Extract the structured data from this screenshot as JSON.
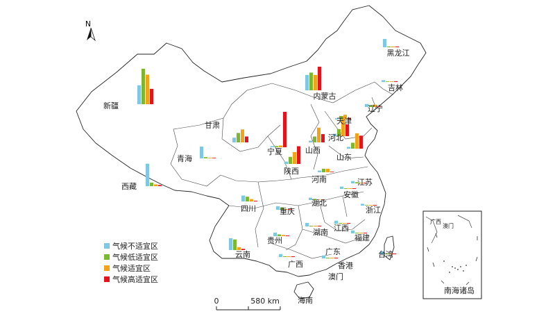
{
  "north_label": "N",
  "legend": {
    "items": [
      {
        "label": "气候不适宜区",
        "color": "#7ec8e3"
      },
      {
        "label": "气候低适宜区",
        "color": "#7cb82f"
      },
      {
        "label": "气候适宜区",
        "color": "#f5a21b"
      },
      {
        "label": "气候高适宜区",
        "color": "#e3141c"
      }
    ]
  },
  "scale_bar": {
    "start": "0",
    "end": "580 km"
  },
  "inset_label": "南海诸岛",
  "chart_data": {
    "type": "bar",
    "series_names": [
      "气候不适宜区",
      "气候低适宜区",
      "气候适宜区",
      "气候高适宜区"
    ],
    "provinces": [
      {
        "name": "新疆",
        "values": [
          32,
          60,
          50,
          26
        ]
      },
      {
        "name": "西藏",
        "values": [
          38,
          6,
          3,
          2
        ]
      },
      {
        "name": "青海",
        "values": [
          20,
          2,
          1,
          1
        ]
      },
      {
        "name": "甘肃",
        "values": [
          8,
          16,
          22,
          10
        ]
      },
      {
        "name": "内蒙古",
        "values": [
          26,
          30,
          26,
          40
        ]
      },
      {
        "name": "黑龙江",
        "values": [
          14,
          0,
          0,
          0
        ]
      },
      {
        "name": "吉林",
        "values": [
          3,
          1,
          1,
          0
        ]
      },
      {
        "name": "辽宁",
        "values": [
          5,
          3,
          4,
          1
        ]
      },
      {
        "name": "宁夏",
        "values": [
          2,
          2,
          3,
          60
        ]
      },
      {
        "name": "陕西",
        "values": [
          4,
          12,
          20,
          30
        ]
      },
      {
        "name": "山西",
        "values": [
          3,
          10,
          25,
          14
        ]
      },
      {
        "name": "河北",
        "values": [
          4,
          12,
          34,
          20
        ]
      },
      {
        "name": "天津",
        "values": [
          2,
          6,
          8,
          3
        ]
      },
      {
        "name": "山东",
        "values": [
          3,
          10,
          26,
          22
        ]
      },
      {
        "name": "河南",
        "values": [
          3,
          6,
          6,
          1
        ]
      },
      {
        "name": "四川",
        "values": [
          10,
          8,
          4,
          0
        ]
      },
      {
        "name": "重庆",
        "values": [
          6,
          4,
          1,
          0
        ]
      },
      {
        "name": "湖北",
        "values": [
          4,
          2,
          1,
          0
        ]
      },
      {
        "name": "江苏",
        "values": [
          4,
          2,
          1,
          0
        ]
      },
      {
        "name": "安徽",
        "values": [
          4,
          0,
          0,
          0
        ]
      },
      {
        "name": "浙江",
        "values": [
          3,
          1,
          0,
          0
        ]
      },
      {
        "name": "贵州",
        "values": [
          6,
          3,
          2,
          0
        ]
      },
      {
        "name": "湖南",
        "values": [
          6,
          0,
          0,
          0
        ]
      },
      {
        "name": "江西",
        "values": [
          5,
          0,
          0,
          0
        ]
      },
      {
        "name": "福建",
        "values": [
          5,
          0,
          0,
          0
        ]
      },
      {
        "name": "云南",
        "values": [
          20,
          18,
          5,
          2
        ]
      },
      {
        "name": "广西",
        "values": [
          5,
          0,
          0,
          0
        ]
      },
      {
        "name": "广东",
        "values": [
          5,
          0,
          0,
          0
        ]
      },
      {
        "name": "台湾",
        "values": [
          5,
          0,
          0,
          0
        ]
      },
      {
        "name": "香港",
        "values": [
          0,
          0,
          0,
          0
        ]
      },
      {
        "name": "澳门",
        "values": [
          0,
          0,
          0,
          0
        ]
      },
      {
        "name": "海南",
        "values": [
          0,
          0,
          0,
          0
        ]
      }
    ]
  }
}
